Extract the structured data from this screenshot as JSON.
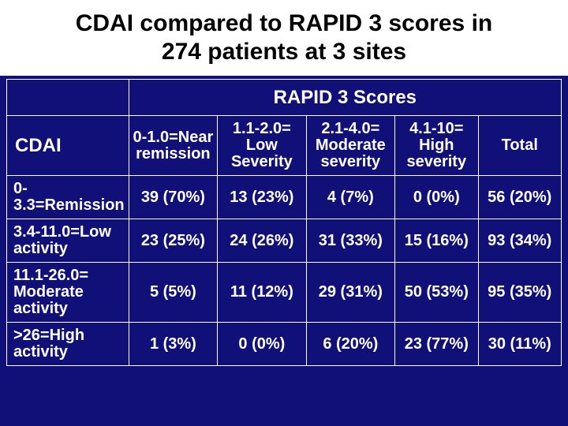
{
  "title": {
    "line1": "CDAI compared to RAPID 3 scores in",
    "line2": "274 patients at 3 sites"
  },
  "colors": {
    "background": "#101078",
    "title_bg": "#ffffff",
    "border": "#ffffff",
    "text": "#ffffff",
    "title_text": "#000000"
  },
  "table": {
    "super_header": "RAPID 3 Scores",
    "row_label": "CDAI",
    "columns": [
      "0-1.0=Near remission",
      "1.1-2.0= Low Severity",
      "2.1-4.0= Moderate severity",
      "4.1-10= High severity",
      "Total"
    ],
    "rows": [
      {
        "label": "0-3.3=Remission",
        "cells": [
          "39 (70%)",
          "13 (23%)",
          "4 (7%)",
          "0 (0%)",
          "56 (20%)"
        ]
      },
      {
        "label": "3.4-11.0=Low activity",
        "cells": [
          "23 (25%)",
          "24 (26%)",
          "31 (33%)",
          "15 (16%)",
          "93 (34%)"
        ]
      },
      {
        "label": "11.1-26.0= Moderate activity",
        "cells": [
          "5 (5%)",
          "11 (12%)",
          "29 (31%)",
          "50 (53%)",
          "95 (35%)"
        ]
      },
      {
        "label": ">26=High activity",
        "cells": [
          "1 (3%)",
          "0 (0%)",
          "6 (20%)",
          "23 (77%)",
          "30 (11%)"
        ]
      }
    ]
  }
}
